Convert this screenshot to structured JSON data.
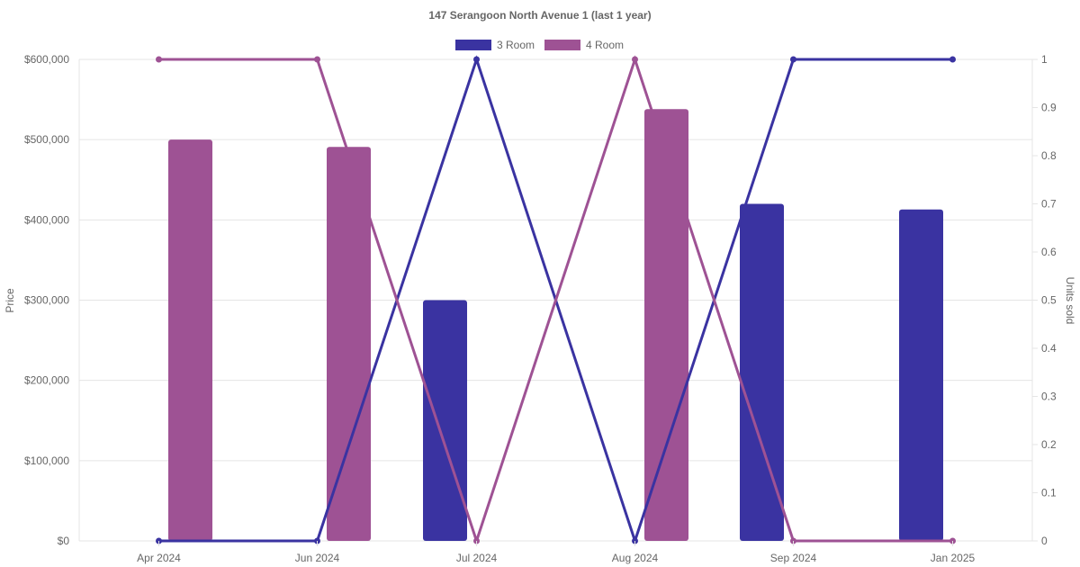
{
  "chart_data": {
    "type": "bar",
    "title": "147 Serangoon North Avenue 1 (last 1 year)",
    "categories": [
      "Apr 2024",
      "Jun 2024",
      "Jul 2024",
      "Aug 2024",
      "Sep 2024",
      "Jan 2025"
    ],
    "y_left": {
      "label": "Price",
      "ticks": [
        "$0",
        "$100,000",
        "$200,000",
        "$300,000",
        "$400,000",
        "$500,000",
        "$600,000"
      ],
      "range": [
        0,
        600000
      ]
    },
    "y_right": {
      "label": "Units sold",
      "ticks": [
        "0",
        "0.1",
        "0.2",
        "0.3",
        "0.4",
        "0.5",
        "0.6",
        "0.7",
        "0.8",
        "0.9",
        "1"
      ],
      "range": [
        0,
        1
      ]
    },
    "grid": true,
    "legend_position": "top",
    "series": [
      {
        "name": "3 Room",
        "color": "#3a33a1",
        "prices": [
          null,
          null,
          300000,
          null,
          420000,
          413000
        ],
        "units_sold": [
          0,
          0,
          1,
          0,
          1,
          1
        ]
      },
      {
        "name": "4 Room",
        "color": "#9e5294",
        "prices": [
          500000,
          491000,
          null,
          538000,
          null,
          null
        ],
        "units_sold": [
          1,
          1,
          0,
          1,
          0,
          0
        ]
      }
    ]
  }
}
